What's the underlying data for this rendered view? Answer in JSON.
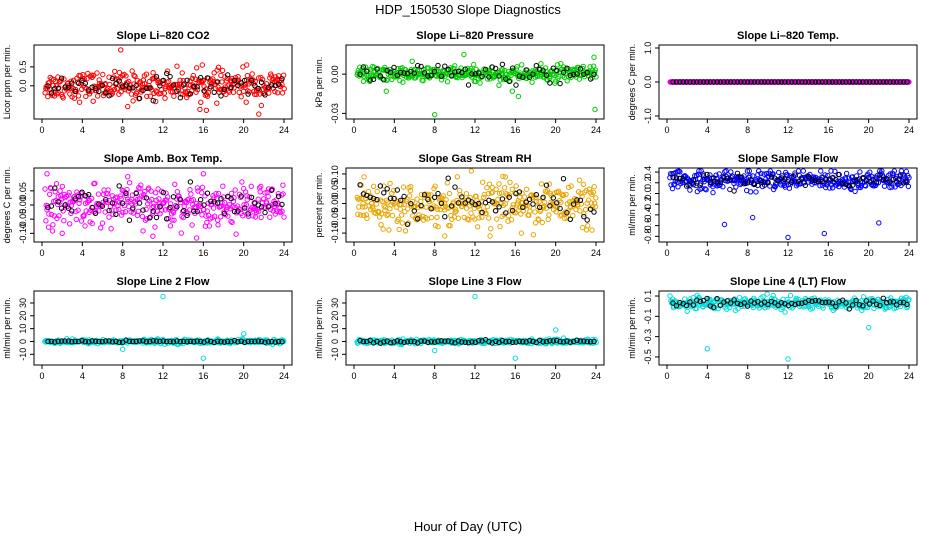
{
  "page": {
    "title": "HDP_150530  Slope Diagnostics",
    "xlabel": "Hour of Day (UTC)"
  },
  "chart_data": [
    {
      "type": "scatter",
      "title": "Slope Li–820 CO2",
      "ylabel": "Licor ppm per min.",
      "color": "#ff0000",
      "xlim": [
        0,
        24
      ],
      "xticks": [
        "0",
        "4",
        "8",
        "12",
        "16",
        "20",
        "24"
      ],
      "ylim": [
        -0.8,
        1.0
      ],
      "yticks": [
        {
          "v": 0.0,
          "label": "0.0"
        },
        {
          "v": 0.5,
          "label": "0.5"
        }
      ],
      "noise_sd": 0.18,
      "outliers": [
        [
          7.8,
          0.95
        ],
        [
          15.9,
          0.55
        ],
        [
          16.3,
          -0.65
        ],
        [
          21.5,
          -0.75
        ],
        [
          20.3,
          0.55
        ],
        [
          8.5,
          -0.55
        ]
      ],
      "black_sd": 0.15
    },
    {
      "type": "scatter",
      "title": "Slope Li–820 Pressure",
      "ylabel": "kPa per min.",
      "color": "#00cc00",
      "xlim": [
        0,
        24
      ],
      "xticks": [
        "0",
        "4",
        "8",
        "12",
        "16",
        "20",
        "24"
      ],
      "ylim": [
        -0.032,
        0.02
      ],
      "yticks": [
        {
          "v": 0.0,
          "label": "0.00"
        },
        {
          "v": -0.03,
          "label": "-0.03"
        }
      ],
      "noise_sd": 0.003,
      "outliers": [
        [
          3.2,
          -0.013
        ],
        [
          8.0,
          -0.031
        ],
        [
          15.7,
          -0.013
        ],
        [
          16.3,
          -0.017
        ],
        [
          23.9,
          -0.027
        ],
        [
          23.8,
          0.013
        ],
        [
          10.9,
          0.015
        ]
      ],
      "black_sd": 0.004
    },
    {
      "type": "scatter",
      "title": "Slope Li–820 Temp.",
      "ylabel": "degrees C per min.",
      "color": "#dd00dd",
      "xlim": [
        0,
        24
      ],
      "xticks": [
        "0",
        "4",
        "8",
        "12",
        "16",
        "20",
        "24"
      ],
      "ylim": [
        -1.0,
        1.0
      ],
      "yticks": [
        {
          "v": 1.0,
          "label": "1.0"
        },
        {
          "v": 0.0,
          "label": "0.0"
        },
        {
          "v": -1.0,
          "label": "-1.0"
        }
      ],
      "noise_sd": 0.0,
      "outliers": [],
      "black_sd": 0.0
    },
    {
      "type": "scatter",
      "title": "Slope Amb. Box Temp.",
      "ylabel": "degrees C per min.",
      "color": "#ff00ff",
      "xlim": [
        0,
        24
      ],
      "xticks": [
        "0",
        "4",
        "8",
        "12",
        "16",
        "20",
        "24"
      ],
      "ylim": [
        -0.12,
        0.12
      ],
      "yticks": [
        {
          "v": 0.05,
          "label": "0.05"
        },
        {
          "v": 0.0,
          "label": "0.00"
        },
        {
          "v": -0.05,
          "label": "-0.05"
        },
        {
          "v": -0.1,
          "label": "-0.10"
        }
      ],
      "noise_sd": 0.035,
      "outliers": [
        [
          0.5,
          0.11
        ],
        [
          11.0,
          -0.11
        ],
        [
          16.0,
          0.11
        ],
        [
          8.5,
          0.1
        ],
        [
          2.0,
          -0.1
        ]
      ],
      "black_sd": 0.03
    },
    {
      "type": "scatter",
      "title": "Slope Gas Stream RH",
      "ylabel": "percent per min.",
      "color": "#e8a400",
      "xlim": [
        0,
        24
      ],
      "xticks": [
        "0",
        "4",
        "8",
        "12",
        "16",
        "20",
        "24"
      ],
      "ylim": [
        -0.12,
        0.11
      ],
      "yticks": [
        {
          "v": 0.1,
          "label": "0.10"
        },
        {
          "v": 0.05,
          "label": "0.05"
        },
        {
          "v": 0.0,
          "label": "0.00"
        },
        {
          "v": -0.05,
          "label": "-0.05"
        },
        {
          "v": -0.1,
          "label": "-0.10"
        }
      ],
      "noise_sd": 0.035,
      "outliers": [
        [
          1.0,
          0.09
        ],
        [
          23.6,
          -0.09
        ],
        [
          16.6,
          -0.1
        ],
        [
          15.0,
          0.09
        ],
        [
          9.0,
          -0.11
        ]
      ],
      "black_sd": 0.03
    },
    {
      "type": "scatter",
      "title": "Slope Sample Flow",
      "ylabel": "ml/min per min.",
      "color": "#0000ff",
      "xlim": [
        0,
        24
      ],
      "xticks": [
        "0",
        "4",
        "8",
        "12",
        "16",
        "20",
        "24"
      ],
      "ylim": [
        -0.85,
        0.42
      ],
      "yticks": [
        {
          "v": 0.4,
          "label": "0.4"
        },
        {
          "v": 0.2,
          "label": "0.2"
        },
        {
          "v": 0.0,
          "label": "0.0"
        },
        {
          "v": -0.2,
          "label": "-0.2"
        },
        {
          "v": -0.4,
          "label": "-0.4"
        },
        {
          "v": -0.6,
          "label": "-0.6"
        },
        {
          "v": -0.8,
          "label": "-0.8"
        }
      ],
      "noise_sd": 0.09,
      "center": 0.25,
      "outliers": [
        [
          12.0,
          -0.82
        ],
        [
          15.6,
          -0.75
        ],
        [
          5.7,
          -0.58
        ],
        [
          8.5,
          -0.45
        ],
        [
          21.0,
          -0.55
        ]
      ],
      "black_sd": 0.06
    },
    {
      "type": "scatter",
      "title": "Slope Line 2 Flow",
      "ylabel": "ml/min per min.",
      "color": "#00dddd",
      "xlim": [
        0,
        24
      ],
      "xticks": [
        "0",
        "4",
        "8",
        "12",
        "16",
        "20",
        "24"
      ],
      "ylim": [
        -16,
        37
      ],
      "yticks": [
        {
          "v": 30,
          "label": "30"
        },
        {
          "v": 20,
          "label": "20"
        },
        {
          "v": 10,
          "label": "10"
        },
        {
          "v": 0,
          "label": "0"
        },
        {
          "v": -10,
          "label": "-10"
        }
      ],
      "noise_sd": 0.8,
      "outliers": [
        [
          12.0,
          35
        ],
        [
          20.0,
          6
        ],
        [
          8.0,
          -6
        ],
        [
          16.0,
          -13
        ]
      ],
      "black_sd": 0.3
    },
    {
      "type": "scatter",
      "title": "Slope Line 3 Flow",
      "ylabel": "ml/min per min.",
      "color": "#00dddd",
      "xlim": [
        0,
        24
      ],
      "xticks": [
        "0",
        "4",
        "8",
        "12",
        "16",
        "20",
        "24"
      ],
      "ylim": [
        -16,
        37
      ],
      "yticks": [
        {
          "v": 30,
          "label": "30"
        },
        {
          "v": 20,
          "label": "20"
        },
        {
          "v": 10,
          "label": "10"
        },
        {
          "v": 0,
          "label": "0"
        },
        {
          "v": -10,
          "label": "-10"
        }
      ],
      "noise_sd": 0.8,
      "outliers": [
        [
          12.0,
          35
        ],
        [
          20.0,
          9
        ],
        [
          8.0,
          -7
        ],
        [
          16.0,
          -13
        ]
      ],
      "black_sd": 0.6
    },
    {
      "type": "scatter",
      "title": "Slope Line 4 (LT) Flow",
      "ylabel": "ml/min per min.",
      "color": "#00dddd",
      "xlim": [
        0,
        24
      ],
      "xticks": [
        "0",
        "4",
        "8",
        "12",
        "16",
        "20",
        "24"
      ],
      "ylim": [
        -0.55,
        0.12
      ],
      "yticks": [
        {
          "v": 0.1,
          "label": "0.1"
        },
        {
          "v": -0.1,
          "label": "-0.1"
        },
        {
          "v": -0.3,
          "label": "-0.3"
        },
        {
          "v": -0.5,
          "label": "-0.5"
        }
      ],
      "noise_sd": 0.03,
      "center": 0.03,
      "outliers": [
        [
          4.0,
          -0.42
        ],
        [
          12.0,
          -0.52
        ],
        [
          20.0,
          -0.21
        ],
        [
          2.0,
          -0.05
        ]
      ],
      "black_sd": 0.02
    }
  ]
}
